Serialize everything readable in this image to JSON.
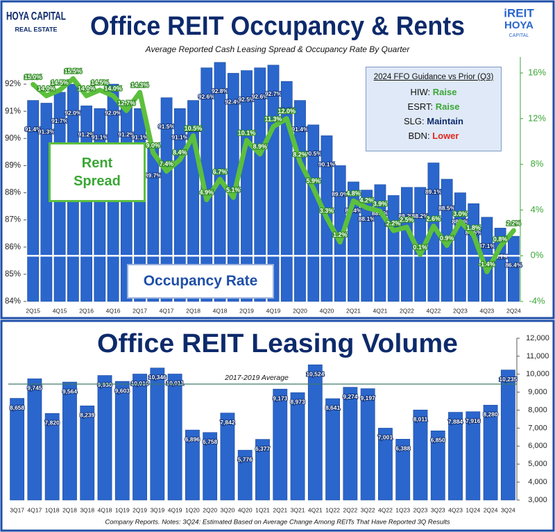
{
  "branding": {
    "left_logo": [
      "HOYA CAPITAL",
      "REAL ESTATE"
    ],
    "right_logo": [
      "iREIT",
      "HOYA",
      "CAPITAL"
    ]
  },
  "guidance": {
    "title": "2024 FFO Guidance vs Prior (Q3)",
    "items": [
      {
        "company": "HIW:",
        "outlook": "Raise",
        "color": "#3aa635"
      },
      {
        "company": "ESRT:",
        "outlook": "Raise",
        "color": "#3aa635"
      },
      {
        "company": "SLG:",
        "outlook": "Maintain",
        "color": "#0d2a6b"
      },
      {
        "company": "BDN:",
        "outlook": "Lower",
        "color": "#e0261f"
      }
    ]
  },
  "footer": "Company Reports. Notes: 3Q24: Estimated Based on Average Change Among REITs That Have Reported 3Q Results",
  "chart_data": [
    {
      "type": "bar",
      "title": "Office REIT Occupancy & Rents",
      "subtitle": "Average Reported Cash Leasing Spread & Occupancy Rate By Quarter",
      "categories": [
        "2Q15",
        null,
        "4Q15",
        null,
        "2Q16",
        null,
        "4Q16",
        null,
        "2Q17",
        null,
        "4Q17",
        null,
        "2Q18",
        null,
        "4Q18",
        null,
        "2Q19",
        null,
        "4Q19",
        null,
        "2Q20",
        null,
        "4Q20",
        null,
        "2Q21",
        null,
        "4Q21",
        null,
        "2Q22",
        null,
        "4Q22",
        null,
        "2Q23",
        null,
        "4Q23",
        null,
        "2Q24"
      ],
      "series": [
        {
          "name": "Occupancy Rate",
          "color": "#2a66cc",
          "values": [
            91.4,
            91.3,
            91.7,
            92.0,
            91.2,
            91.1,
            92.0,
            91.2,
            91.1,
            89.7,
            91.5,
            91.1,
            91.4,
            92.6,
            92.8,
            92.4,
            92.5,
            92.6,
            92.7,
            92.1,
            91.4,
            90.5,
            90.1,
            89.0,
            88.4,
            88.1,
            88.3,
            87.9,
            88.2,
            88.2,
            89.1,
            88.5,
            88.0,
            87.6,
            87.1,
            86.7,
            86.4
          ],
          "value_labels": [
            "91.4%",
            "91.3%",
            "91.7%",
            "92.0%",
            "91.2%",
            "91.1%",
            "92.0%",
            "91.2%",
            "91.1%",
            "89.7%",
            "91.5%",
            "91.1%",
            "91.4%",
            "92.6%",
            "92.8%",
            "92.4%",
            "92.5%",
            "92.6%",
            "92.7%",
            "92.1%",
            "91.4%",
            "90.5%",
            "90.1%",
            "89.0%",
            "88.4%",
            "88.1%",
            "88.3%",
            "87.9%",
            "88.2%",
            "88.2%",
            "89.1%",
            "88.5%",
            "88.0%",
            "87.6%",
            "87.1%",
            "86.7%",
            "86.4%"
          ]
        },
        {
          "name": "Rent Spread",
          "type": "line",
          "axis": "y2",
          "color": "#5cc03c",
          "values": [
            15.0,
            14.0,
            14.5,
            15.5,
            14.0,
            14.5,
            14.0,
            12.7,
            14.3,
            9.0,
            7.4,
            8.4,
            10.5,
            4.9,
            6.7,
            5.1,
            10.1,
            8.9,
            11.3,
            12.0,
            8.2,
            5.9,
            3.3,
            1.2,
            4.8,
            4.2,
            3.9,
            2.2,
            2.5,
            0.1,
            2.6,
            0.9,
            3.0,
            1.8,
            -1.4,
            0.8,
            2.2
          ],
          "value_labels": [
            "15.0%",
            "14.0%",
            "14.5%",
            "15.5%",
            "14.0%",
            "14.5%",
            "14.0%",
            "12.7%",
            "14.3%",
            "9.0%",
            "7.4%",
            "8.4%",
            "10.5%",
            "4.9%",
            "6.7%",
            "5.1%",
            "10.1%",
            "8.9%",
            "11.3%",
            "12.0%",
            "8.2%",
            "5.9%",
            "3.3%",
            "1.2%",
            "4.8%",
            "4.2%",
            "3.9%",
            "2.2%",
            "2.5%",
            "0.1%",
            "2.6%",
            "0.9%",
            "3.0%",
            "1.8%",
            "-1.4%",
            "0.8%",
            "2.2%"
          ]
        }
      ],
      "ylim": [
        84,
        93
      ],
      "yticks": [
        {
          "value": 84,
          "label": "84%"
        },
        {
          "value": 85,
          "label": "85%"
        },
        {
          "value": 86,
          "label": "86%"
        },
        {
          "value": 87,
          "label": "87%"
        },
        {
          "value": 88,
          "label": "88%"
        },
        {
          "value": 89,
          "label": "89%"
        },
        {
          "value": 90,
          "label": "90%"
        },
        {
          "value": 91,
          "label": "91%"
        },
        {
          "value": 92,
          "label": "92%"
        }
      ],
      "y2lim": [
        -4,
        17.4
      ],
      "y2ticks": [
        {
          "value": -4,
          "label": "-4%"
        },
        {
          "value": 0,
          "label": "0%"
        },
        {
          "value": 4,
          "label": "4%"
        },
        {
          "value": 8,
          "label": "8%"
        },
        {
          "value": 12,
          "label": "12%"
        },
        {
          "value": 16,
          "label": "16%"
        }
      ],
      "zero_line": true
    },
    {
      "type": "bar",
      "title": "Office REIT Leasing Volume",
      "categories": [
        "3Q17",
        "4Q17",
        "1Q18",
        "2Q18",
        "3Q18",
        "4Q18",
        "1Q19",
        "2Q19",
        "3Q19",
        "4Q19",
        "1Q20",
        "2Q20",
        "3Q20",
        "4Q20",
        "1Q21",
        "2Q21",
        "3Q21",
        "4Q21",
        "1Q22",
        "2Q22",
        "3Q22",
        "4Q22",
        "1Q23",
        "2Q23",
        "3Q23",
        "4Q23",
        "1Q24",
        "2Q24",
        "3Q24"
      ],
      "values": [
        8658,
        9745,
        7820,
        9564,
        8239,
        9930,
        9603,
        10010,
        10346,
        10011,
        6896,
        6758,
        7842,
        5776,
        6377,
        9173,
        8973,
        10524,
        8641,
        9274,
        9197,
        7001,
        6388,
        8011,
        6850,
        7884,
        7916,
        8280,
        10235
      ],
      "value_labels": [
        "8,658",
        "9,745",
        "7,820",
        "9,564",
        "8,239",
        "9,930",
        "9,603",
        "10,010",
        "10,346",
        "10,011",
        "6,896",
        "6,758",
        "7,842",
        "5,776",
        "6,377",
        "9,173",
        "8,973",
        "10,524",
        "8,641",
        "9,274",
        "9,197",
        "7,001",
        "6,388",
        "8,011",
        "6,850",
        "7,884",
        "7,916",
        "8,280",
        "10,235"
      ],
      "color": "#2a66cc",
      "ylim": [
        3000,
        12000
      ],
      "yticks": [
        {
          "value": 3000,
          "label": "3,000"
        },
        {
          "value": 4000,
          "label": "4,000"
        },
        {
          "value": 5000,
          "label": "5,000"
        },
        {
          "value": 6000,
          "label": "6,000"
        },
        {
          "value": 7000,
          "label": "7,000"
        },
        {
          "value": 8000,
          "label": "8,000"
        },
        {
          "value": 9000,
          "label": "9,000"
        },
        {
          "value": 10000,
          "label": "10,000"
        },
        {
          "value": 11000,
          "label": "11,000"
        },
        {
          "value": 12000,
          "label": "12,000"
        }
      ],
      "reference_line": {
        "value": 9450,
        "label": "2017-2019 Average"
      }
    }
  ]
}
